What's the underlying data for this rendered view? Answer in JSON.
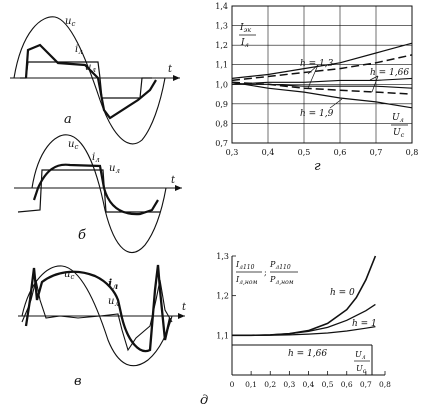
{
  "panel_a": {
    "letter": "а",
    "labels": {
      "uc": "u",
      "uc_sub": "с",
      "il": "i",
      "il_sub": "л",
      "ul": "u",
      "ul_sub": "л",
      "t": "t"
    }
  },
  "panel_b": {
    "letter": "б",
    "labels": {
      "uc": "u",
      "uc_sub": "с",
      "il": "i",
      "il_sub": "л",
      "ul": "u",
      "ul_sub": "л",
      "t": "t"
    }
  },
  "panel_v": {
    "letter": "в",
    "labels": {
      "uc": "u",
      "uc_sub": "с",
      "il": "i",
      "il_sub": "л",
      "ul": "u",
      "ul_sub": "л",
      "t": "t"
    }
  },
  "chart_g": {
    "letter": "г",
    "y_label_num": "I",
    "y_label_num_sub": "эк",
    "y_label_den": "I",
    "y_label_den_sub": "л",
    "x_label_num": "U",
    "x_label_num_sub": "л",
    "x_label_den": "U",
    "x_label_den_sub": "с",
    "curve_labels": [
      "h = 1,3",
      "h = 1,66",
      "h = 1,9"
    ],
    "x_ticks": [
      "0,3",
      "0,4",
      "0,5",
      "0,6",
      "0,7",
      "0,8"
    ],
    "y_ticks": [
      "1,4",
      "1,3",
      "1,2",
      "1,1",
      "1,0",
      "0,9",
      "0,8",
      "0,7"
    ]
  },
  "chart_d": {
    "letter": "д",
    "y_label_left_num": "I",
    "y_label_left_num_sub": "л110",
    "y_label_left_den": "I",
    "y_label_left_den_sub": "л,ном",
    "y_label_sep": ";",
    "y_label_right_num": "P",
    "y_label_right_num_sub": "л110",
    "y_label_right_den": "P",
    "y_label_right_den_sub": "л,ном",
    "x_label_num": "U",
    "x_label_num_sub": "л",
    "x_label_den": "U",
    "x_label_den_sub": "с",
    "curve_labels": [
      "h = 0",
      "h = 1",
      "h = 1,66"
    ],
    "x_ticks": [
      "0",
      "0,1",
      "0,2",
      "0,3",
      "0,4",
      "0,5",
      "0,6",
      "0,7",
      "0,8"
    ],
    "y_ticks": [
      "1,3",
      "1,2",
      "1,1"
    ]
  },
  "chart_data": [
    {
      "type": "line",
      "panel": "г",
      "xlim": [
        0.3,
        0.8
      ],
      "ylim": [
        0.7,
        1.4
      ],
      "grid": true,
      "series": [
        {
          "name": "h = 1,3",
          "x": [
            0.3,
            0.4,
            0.5,
            0.6,
            0.7,
            0.8
          ],
          "y": [
            1.03,
            1.05,
            1.08,
            1.11,
            1.16,
            1.21
          ]
        },
        {
          "name": "h = 1,3",
          "x": [
            0.3,
            0.4,
            0.5,
            0.6,
            0.7,
            0.8
          ],
          "y": [
            1.01,
            0.98,
            0.96,
            0.93,
            0.91,
            0.88
          ]
        },
        {
          "name": "h = 1,66",
          "x": [
            0.3,
            0.4,
            0.5,
            0.6,
            0.7,
            0.8
          ],
          "y": [
            1.02,
            1.04,
            1.06,
            1.08,
            1.11,
            1.15
          ]
        },
        {
          "name": "h = 1,66",
          "x": [
            0.3,
            0.4,
            0.5,
            0.6,
            0.7,
            0.8
          ],
          "y": [
            1.01,
            1.0,
            0.98,
            0.97,
            0.96,
            0.95
          ]
        },
        {
          "name": "h = 1,9",
          "x": [
            0.3,
            0.4,
            0.5,
            0.6,
            0.7,
            0.8
          ],
          "y": [
            1.0,
            1.01,
            1.01,
            1.02,
            1.02,
            1.03
          ]
        },
        {
          "name": "h = 1,9",
          "x": [
            0.3,
            0.4,
            0.5,
            0.6,
            0.7,
            0.8
          ],
          "y": [
            1.0,
            1.0,
            0.99,
            0.99,
            0.99,
            0.98
          ]
        }
      ]
    },
    {
      "type": "line",
      "panel": "д",
      "xlim": [
        0,
        0.8
      ],
      "ylim": [
        1.0,
        1.3
      ],
      "grid": false,
      "series": [
        {
          "name": "h = 0",
          "x": [
            0,
            0.1,
            0.2,
            0.3,
            0.4,
            0.5,
            0.6,
            0.65,
            0.7,
            0.75
          ],
          "y": [
            1.1,
            1.1,
            1.101,
            1.104,
            1.112,
            1.13,
            1.165,
            1.195,
            1.24,
            1.3
          ]
        },
        {
          "name": "h = 1",
          "x": [
            0,
            0.1,
            0.2,
            0.3,
            0.4,
            0.5,
            0.6,
            0.7,
            0.75
          ],
          "y": [
            1.1,
            1.1,
            1.101,
            1.104,
            1.11,
            1.12,
            1.138,
            1.162,
            1.178
          ]
        },
        {
          "name": "h = 1,66",
          "x": [
            0,
            0.1,
            0.2,
            0.3,
            0.4,
            0.5,
            0.6,
            0.7,
            0.75
          ],
          "y": [
            1.1,
            1.1,
            1.1,
            1.101,
            1.103,
            1.106,
            1.111,
            1.118,
            1.122
          ]
        }
      ]
    }
  ]
}
